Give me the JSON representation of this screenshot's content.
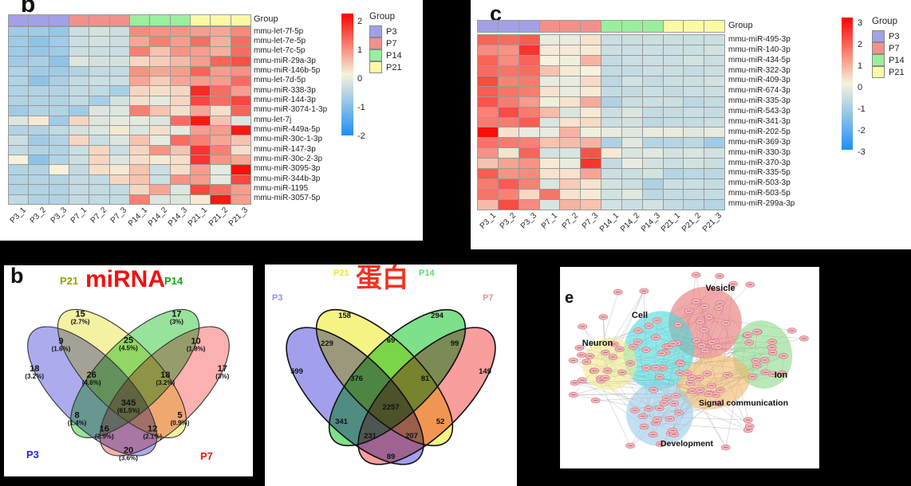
{
  "figure": {
    "background": "#000000",
    "panels": {
      "heatmap_b": {
        "panel_letter": "b",
        "group_label": "Group",
        "columns": [
          "P3_1",
          "P3_2",
          "P3_3",
          "P7_1",
          "P7_2",
          "P7_3",
          "P14_1",
          "P14_2",
          "P14_3",
          "P21_1",
          "P21_2",
          "P21_3"
        ],
        "rows": [
          "mmu-let-7f-5p",
          "mmu-let-7e-5p",
          "mmu-let-7c-5p",
          "mmu-miR-29a-3p",
          "mmu-miR-146b-5p",
          "mmu-let-7d-5p",
          "mmu-miR-338-3p",
          "mmu-miR-144-3p",
          "mmu-miR-3074-1-3p",
          "mmu-let-7j",
          "mmu-miR-449a-5p",
          "mmu-miR-30c-1-3p",
          "mmu-miR-147-3p",
          "mmu-miR-30c-2-3p",
          "mmu-miR-3095-3p",
          "mmu-miR-344b-3p",
          "mmu-miR-1195",
          "mmu-miR-3057-5p"
        ],
        "chart_data": {
          "type": "heatmap",
          "value_abs_max": 2.5,
          "values": [
            [
              -1.0,
              -1.0,
              -1.1,
              -0.5,
              -0.4,
              -0.5,
              1.1,
              1.0,
              1.0,
              0.9,
              0.8,
              1.1
            ],
            [
              -1.0,
              -1.2,
              -1.0,
              -0.5,
              -0.4,
              -0.5,
              0.8,
              1.2,
              0.9,
              1.4,
              0.7,
              1.4
            ],
            [
              -1.0,
              -1.1,
              -1.0,
              -0.5,
              -0.5,
              -0.5,
              1.2,
              0.5,
              1.0,
              0.9,
              0.7,
              1.4
            ],
            [
              -1.0,
              -0.9,
              -1.2,
              -0.3,
              -0.4,
              -0.4,
              0.3,
              0.4,
              0.6,
              0.9,
              1.5,
              1.7
            ],
            [
              -0.8,
              -1.0,
              -1.0,
              -0.8,
              -0.6,
              -0.6,
              1.0,
              0.8,
              0.9,
              1.5,
              0.9,
              1.0
            ],
            [
              -0.8,
              -1.2,
              -0.9,
              -0.6,
              -0.5,
              -0.5,
              0.8,
              0.4,
              0.8,
              0.9,
              0.9,
              1.4
            ],
            [
              -0.8,
              -0.8,
              -0.8,
              -0.6,
              -0.6,
              -0.9,
              0.3,
              0.2,
              0.3,
              2.1,
              1.4,
              0.9
            ],
            [
              -0.8,
              -0.8,
              -0.8,
              -0.6,
              -0.9,
              -0.4,
              0.2,
              -0.2,
              0.3,
              1.8,
              1.4,
              1.8
            ],
            [
              -1.0,
              -0.8,
              -0.8,
              -1.0,
              -0.3,
              -0.3,
              1.2,
              0.5,
              0.2,
              0.8,
              0.2,
              1.5
            ],
            [
              -0.3,
              0.1,
              -1.0,
              0.3,
              -0.3,
              -0.2,
              -0.2,
              -0.3,
              1.4,
              2.3,
              0.5,
              -0.3
            ],
            [
              -0.8,
              -0.8,
              -0.6,
              -0.4,
              -0.3,
              0.1,
              -0.3,
              0.2,
              -0.2,
              0.9,
              0.9,
              2.3
            ],
            [
              -0.5,
              -1.0,
              -0.8,
              0.3,
              -0.5,
              -0.3,
              0.5,
              -0.2,
              1.4,
              1.2,
              0.8,
              0.5
            ],
            [
              -0.6,
              -0.8,
              -0.8,
              -0.5,
              0.3,
              -0.5,
              0.3,
              1.0,
              0.5,
              2.0,
              1.2,
              0.2
            ],
            [
              0.0,
              -1.2,
              -0.8,
              -0.5,
              0.3,
              -0.3,
              0.2,
              0.1,
              0.2,
              2.0,
              1.0,
              0.8
            ],
            [
              -0.8,
              -0.8,
              0.0,
              -0.6,
              0.2,
              0.1,
              0.5,
              -0.5,
              0.2,
              0.9,
              -0.2,
              2.4
            ],
            [
              -0.8,
              -0.8,
              -0.8,
              -0.6,
              -0.6,
              0.3,
              0.5,
              -0.5,
              1.0,
              0.9,
              -0.2,
              1.8
            ],
            [
              -0.8,
              -0.8,
              -0.8,
              -0.6,
              -0.6,
              -0.6,
              0.3,
              0.8,
              -0.3,
              1.8,
              1.4,
              0.9
            ],
            [
              -0.6,
              -0.8,
              -0.8,
              -0.6,
              -0.6,
              -0.6,
              1.2,
              -0.3,
              -0.3,
              0.1,
              2.3,
              0.9
            ]
          ]
        },
        "colorbar_ticks": [
          "2",
          "1",
          "0",
          "-1",
          "-2"
        ],
        "gradient": [
          "#fa0500",
          "#f6f2dc",
          "#1e90f5"
        ],
        "legend_title": "Group",
        "legend_items": [
          {
            "label": "P3",
            "color": "#a3a0e8"
          },
          {
            "label": "P7",
            "color": "#f2918b"
          },
          {
            "label": "P14",
            "color": "#99ef9d"
          },
          {
            "label": "P21",
            "color": "#fafaa5"
          }
        ]
      },
      "heatmap_c": {
        "panel_letter": "c",
        "group_label": "Group",
        "columns": [
          "P3_1",
          "P3_2",
          "P3_3",
          "P7_1",
          "P7_2",
          "P7_3",
          "P14_1",
          "P14_2",
          "P14_3",
          "P21_1",
          "P21_2",
          "P21_3"
        ],
        "rows": [
          "mmu-miR-495-3p",
          "mmu-miR-140-3p",
          "mmu-miR-434-5p",
          "mmu-miR-322-3p",
          "mmu-miR-409-3p",
          "mmu-miR-674-3p",
          "mmu-miR-335-3p",
          "mmu-miR-543-3p",
          "mmu-miR-341-3p",
          "mmu-miR-202-5p",
          "mmu-miR-369-3p",
          "mmu-miR-330-3p",
          "mmu-miR-370-3p",
          "mmu-miR-335-5p",
          "mmu-miR-503-3p",
          "mmu-miR-503-5p",
          "mmu-miR-299a-3p"
        ],
        "chart_data": {
          "type": "heatmap",
          "value_abs_max": 3,
          "values": [
            [
              1.8,
              1.7,
              1.9,
              -0.2,
              -0.2,
              0.2,
              -0.6,
              -0.6,
              -0.6,
              -0.6,
              -0.6,
              -0.6
            ],
            [
              1.3,
              1.2,
              2.4,
              0.1,
              0.1,
              0.1,
              -0.6,
              -0.6,
              -0.6,
              -0.6,
              -0.6,
              -0.5
            ],
            [
              1.8,
              1.3,
              1.8,
              0.0,
              -0.1,
              0.8,
              -0.7,
              -0.6,
              -0.6,
              -0.6,
              -0.5,
              -0.6
            ],
            [
              1.7,
              1.6,
              1.7,
              0.6,
              0.1,
              0.0,
              -0.7,
              -0.7,
              -0.6,
              -0.6,
              -0.7,
              -0.6
            ],
            [
              2.1,
              1.4,
              1.5,
              -0.2,
              -0.2,
              0.3,
              -0.8,
              -0.5,
              -0.7,
              -0.6,
              -0.6,
              -0.5
            ],
            [
              1.9,
              1.6,
              1.5,
              0.2,
              -0.2,
              0.1,
              -0.7,
              -0.7,
              -0.6,
              -0.7,
              -0.6,
              -0.6
            ],
            [
              2.0,
              1.5,
              1.1,
              -0.1,
              0.2,
              0.9,
              -1.0,
              -0.6,
              -0.6,
              -0.6,
              -0.8,
              -0.7
            ],
            [
              1.4,
              2.1,
              1.5,
              0.7,
              -0.4,
              0.1,
              -0.6,
              -0.4,
              -0.7,
              -0.7,
              -0.6,
              -0.7
            ],
            [
              1.5,
              1.5,
              1.9,
              -0.4,
              0.2,
              0.3,
              -0.6,
              -0.5,
              -0.8,
              -0.7,
              -0.7,
              -0.6
            ],
            [
              2.9,
              0.2,
              -0.2,
              -0.2,
              0.8,
              -0.1,
              -0.2,
              -0.3,
              -0.2,
              -0.2,
              -0.3,
              -0.2
            ],
            [
              1.6,
              1.5,
              1.4,
              0.6,
              0.7,
              0.8,
              -1.0,
              -0.3,
              -0.9,
              -0.9,
              -0.8,
              -1.2
            ],
            [
              1.2,
              0.2,
              1.8,
              -0.5,
              -0.4,
              2.0,
              0.1,
              -0.4,
              -0.3,
              -0.5,
              -0.4,
              -0.5
            ],
            [
              0.6,
              1.0,
              1.2,
              0.1,
              -0.2,
              2.4,
              -0.7,
              -0.2,
              -0.5,
              -0.6,
              -0.5,
              -0.6
            ],
            [
              1.9,
              1.2,
              1.3,
              0.2,
              0.2,
              1.0,
              -0.6,
              -0.6,
              -0.5,
              -0.9,
              -0.8,
              -0.8
            ],
            [
              1.5,
              1.9,
              1.4,
              -0.4,
              0.5,
              0.2,
              -0.5,
              -0.6,
              -1.0,
              -0.6,
              -0.6,
              -0.7
            ],
            [
              1.6,
              1.4,
              0.3,
              1.6,
              0.2,
              0.1,
              -0.5,
              -0.3,
              -0.8,
              -0.7,
              -0.7,
              -0.7
            ],
            [
              0.7,
              2.1,
              1.3,
              -0.4,
              0.8,
              0.6,
              -0.5,
              -0.6,
              -0.5,
              -0.7,
              -0.8,
              -0.9
            ]
          ]
        },
        "colorbar_ticks": [
          "3",
          "2",
          "1",
          "0",
          "-1",
          "-2",
          "-3"
        ],
        "gradient": [
          "#fa0500",
          "#f6f2dc",
          "#1e90f5"
        ],
        "legend_title": "Group",
        "legend_items": [
          {
            "label": "P3",
            "color": "#a3a0e8"
          },
          {
            "label": "P7",
            "color": "#f2918b"
          },
          {
            "label": "P14",
            "color": "#99ef9d"
          },
          {
            "label": "P21",
            "color": "#fafaa5"
          }
        ]
      },
      "venn_mirna": {
        "panel_letter": "b",
        "title": "miRNA",
        "title_color": "#f51010",
        "set_labels": {
          "P21": {
            "text": "P21",
            "color": "#9c9c12"
          },
          "P14": {
            "text": "P14",
            "color": "#18a018"
          },
          "P3": {
            "text": "P3",
            "color": "#2525ee"
          },
          "P7": {
            "text": "P7",
            "color": "#f01212"
          }
        },
        "set_fills": {
          "P3": "#9a99e9",
          "P21": "#f2ef8e",
          "P14": "#83dc85",
          "P7": "#f9a09e"
        },
        "chart_data": {
          "type": "venn4",
          "regions": {
            "P3": {
              "count": "18",
              "pct": "(3.2%)"
            },
            "P21": {
              "count": "15",
              "pct": "(2.7%)"
            },
            "P14": {
              "count": "17",
              "pct": "(3%)"
            },
            "P7": {
              "count": "17",
              "pct": "(3%)"
            },
            "P3_P21": {
              "count": "9",
              "pct": "(1.6%)"
            },
            "P21_P14": {
              "count": "25",
              "pct": "(4.5%)"
            },
            "P14_P7": {
              "count": "10",
              "pct": "(1.8%)"
            },
            "P3_P14": {
              "count": "8",
              "pct": "(1.4%)"
            },
            "P21_P7": {
              "count": "5",
              "pct": "(0.9%)"
            },
            "P3_P7": {
              "count": "20",
              "pct": "(3.6%)"
            },
            "P3_P21_P14": {
              "count": "26",
              "pct": "(4.6%)"
            },
            "P21_P14_P7": {
              "count": "18",
              "pct": "(3.2%)"
            },
            "P3_P14_P7": {
              "count": "16",
              "pct": "(2.9%)"
            },
            "P3_P21_P7": {
              "count": "12",
              "pct": "(2.1%)"
            },
            "ALL": {
              "count": "345",
              "pct": "(61.5%)"
            }
          }
        }
      },
      "venn_protein": {
        "title": "蛋白",
        "title_color": "#f53020",
        "set_labels": {
          "P21": {
            "text": "P21",
            "color": "#eee23a"
          },
          "P14": {
            "text": "P14",
            "color": "#55e060"
          },
          "P3": {
            "text": "P3",
            "color": "#8f8fee"
          },
          "P7": {
            "text": "P7",
            "color": "#f59090"
          }
        },
        "set_fills": {
          "P3": "#8d8be8",
          "P21": "#f4f06a",
          "P14": "#62d972",
          "P7": "#f98888"
        },
        "chart_data": {
          "type": "venn4",
          "regions": {
            "P3": {
              "count": "599"
            },
            "P21": {
              "count": "158"
            },
            "P14": {
              "count": "294"
            },
            "P7": {
              "count": "149"
            },
            "P3_P21": {
              "count": "229"
            },
            "P21_P14": {
              "count": "69"
            },
            "P14_P7": {
              "count": "99"
            },
            "P3_P14": {
              "count": "341"
            },
            "P21_P7": {
              "count": "52"
            },
            "P3_P7": {
              "count": "89"
            },
            "P3_P21_P14": {
              "count": "376"
            },
            "P21_P14_P7": {
              "count": "81"
            },
            "P3_P14_P7": {
              "count": "231"
            },
            "P3_P21_P7": {
              "count": "207"
            },
            "ALL": {
              "count": "2257"
            }
          }
        }
      },
      "network": {
        "panel_letter": "e",
        "clusters": [
          {
            "name": "Vesicle",
            "color": "#e87272"
          },
          {
            "name": "Cell",
            "color": "#4ad8d8"
          },
          {
            "name": "Neuron",
            "color": "#f0ec8a"
          },
          {
            "name": "Ion",
            "color": "#8ad88a"
          },
          {
            "name": "Signal communication",
            "color": "#f0b868"
          },
          {
            "name": "Development",
            "color": "#9acce8"
          }
        ],
        "node_fill": "#f7b6bd",
        "node_stroke": "#c96f7a",
        "edge_color": "#8f8f8f"
      }
    }
  }
}
